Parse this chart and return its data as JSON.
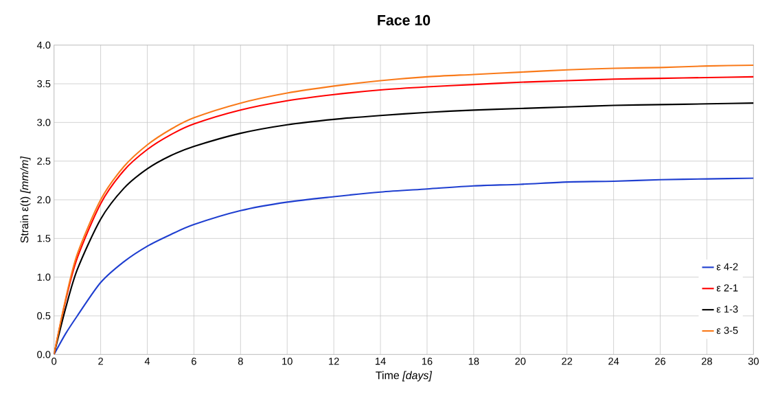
{
  "chart_data": {
    "type": "line",
    "title": "Face 10",
    "xlabel": "Time *[days]*",
    "ylabel": "Strain ε(t) *[mm/m]*",
    "xlim": [
      0,
      30
    ],
    "ylim": [
      0,
      4
    ],
    "xticks": [
      0,
      2,
      4,
      6,
      8,
      10,
      12,
      14,
      16,
      18,
      20,
      22,
      24,
      26,
      28,
      30
    ],
    "yticks": [
      {
        "value": 0,
        "label": "0.0"
      },
      {
        "value": 0.5,
        "label": "0.5"
      },
      {
        "value": 1,
        "label": "1.0"
      },
      {
        "value": 1.5,
        "label": "1.5"
      },
      {
        "value": 2,
        "label": "2.0"
      },
      {
        "value": 2.5,
        "label": "2.5"
      },
      {
        "value": 3,
        "label": "3.0"
      },
      {
        "value": 3.5,
        "label": "3.5"
      },
      {
        "value": 4,
        "label": "4.0"
      }
    ],
    "grid": true,
    "legend": "bottom right",
    "marker": "none",
    "line_style": "solid",
    "x": [
      0,
      0.5,
      1,
      2,
      3,
      4,
      5,
      6,
      8,
      10,
      12,
      14,
      16,
      18,
      20,
      22,
      24,
      26,
      28,
      30
    ],
    "series": [
      {
        "name": "ε 4-2",
        "color": "#1f3fd0",
        "values": [
          0,
          0.27,
          0.5,
          0.93,
          1.2,
          1.4,
          1.55,
          1.68,
          1.86,
          1.97,
          2.04,
          2.1,
          2.14,
          2.18,
          2.2,
          2.23,
          2.24,
          2.26,
          2.27,
          2.28
        ]
      },
      {
        "name": "ε 2-1",
        "color": "#ff0000",
        "values": [
          0,
          0.7,
          1.25,
          1.95,
          2.38,
          2.65,
          2.84,
          2.98,
          3.16,
          3.28,
          3.36,
          3.42,
          3.46,
          3.49,
          3.52,
          3.54,
          3.56,
          3.57,
          3.58,
          3.59
        ]
      },
      {
        "name": "ε 1-3",
        "color": "#000000",
        "values": [
          0,
          0.6,
          1.1,
          1.75,
          2.15,
          2.4,
          2.57,
          2.69,
          2.86,
          2.97,
          3.04,
          3.09,
          3.13,
          3.16,
          3.18,
          3.2,
          3.22,
          3.23,
          3.24,
          3.25
        ]
      },
      {
        "name": "ε 3-5",
        "color": "#f97a1a",
        "values": [
          0,
          0.72,
          1.3,
          2.0,
          2.43,
          2.71,
          2.91,
          3.06,
          3.25,
          3.38,
          3.47,
          3.54,
          3.59,
          3.62,
          3.65,
          3.68,
          3.7,
          3.71,
          3.73,
          3.74
        ]
      }
    ]
  }
}
